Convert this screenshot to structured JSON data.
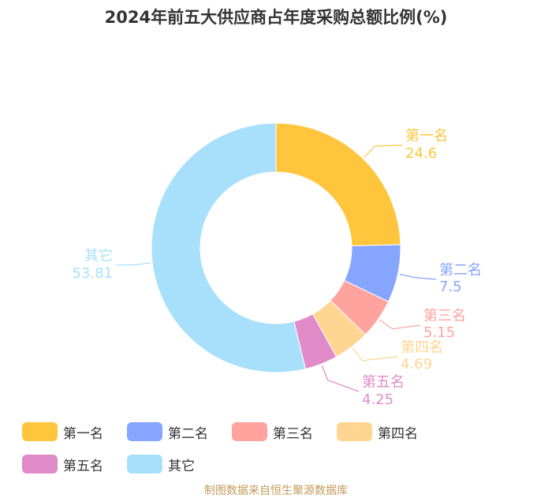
{
  "chart_data": {
    "type": "pie",
    "variant": "donut",
    "title": "2024年前五大供应商占年度采购总额比例(%)",
    "categories": [
      "第一名",
      "第二名",
      "第三名",
      "第四名",
      "第五名",
      "其它"
    ],
    "values": [
      24.6,
      7.5,
      5.15,
      4.69,
      4.25,
      53.81
    ],
    "value_labels": [
      "24.6",
      "7.5",
      "5.15",
      "4.69",
      "4.25",
      "53.81"
    ],
    "colors": [
      "#ffc53d",
      "#85a5ff",
      "#ffa39e",
      "#ffd591",
      "#e08bc7",
      "#a8e0fb"
    ],
    "legend_position": "bottom"
  },
  "source": "制图数据来自恒生聚源数据库"
}
